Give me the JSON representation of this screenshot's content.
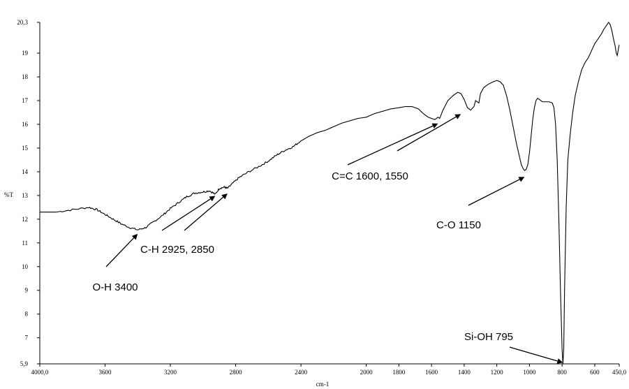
{
  "chart_data": {
    "type": "line",
    "xlabel": "cm-1",
    "ylabel": "%T",
    "xlim": [
      4000,
      450
    ],
    "ylim": [
      5.9,
      20.3
    ],
    "x_reversed": true,
    "grid": false,
    "x_ticks": [
      {
        "value": 4000,
        "label": "4000,0"
      },
      {
        "value": 3600,
        "label": "3600"
      },
      {
        "value": 3200,
        "label": "3200"
      },
      {
        "value": 2800,
        "label": "2800"
      },
      {
        "value": 2400,
        "label": "2400"
      },
      {
        "value": 2000,
        "label": "2000"
      },
      {
        "value": 1800,
        "label": "1800"
      },
      {
        "value": 1600,
        "label": "1600"
      },
      {
        "value": 1400,
        "label": "1400"
      },
      {
        "value": 1200,
        "label": "1200"
      },
      {
        "value": 1000,
        "label": "1000"
      },
      {
        "value": 800,
        "label": "800"
      },
      {
        "value": 600,
        "label": "600"
      },
      {
        "value": 450,
        "label": "450,0"
      }
    ],
    "y_ticks": [
      {
        "value": 5.9,
        "label": "5,9"
      },
      {
        "value": 7,
        "label": "7"
      },
      {
        "value": 8,
        "label": "8"
      },
      {
        "value": 9,
        "label": "9"
      },
      {
        "value": 10,
        "label": "10"
      },
      {
        "value": 11,
        "label": "11"
      },
      {
        "value": 12,
        "label": "12"
      },
      {
        "value": 13,
        "label": "13"
      },
      {
        "value": 14,
        "label": "14"
      },
      {
        "value": 15,
        "label": "15"
      },
      {
        "value": 16,
        "label": "16"
      },
      {
        "value": 17,
        "label": "17"
      },
      {
        "value": 18,
        "label": "18"
      },
      {
        "value": 19,
        "label": "19"
      },
      {
        "value": 20.3,
        "label": "20,3"
      }
    ],
    "series": [
      {
        "points": [
          [
            4000,
            12.3
          ],
          [
            3900,
            12.3
          ],
          [
            3800,
            12.4
          ],
          [
            3700,
            12.5
          ],
          [
            3650,
            12.4
          ],
          [
            3600,
            12.2
          ],
          [
            3550,
            12.0
          ],
          [
            3500,
            11.8
          ],
          [
            3450,
            11.65
          ],
          [
            3400,
            11.55
          ],
          [
            3350,
            11.65
          ],
          [
            3300,
            11.9
          ],
          [
            3250,
            12.15
          ],
          [
            3200,
            12.45
          ],
          [
            3150,
            12.7
          ],
          [
            3100,
            12.95
          ],
          [
            3050,
            13.1
          ],
          [
            3000,
            13.15
          ],
          [
            2960,
            13.2
          ],
          [
            2925,
            13.05
          ],
          [
            2900,
            13.3
          ],
          [
            2870,
            13.35
          ],
          [
            2850,
            13.3
          ],
          [
            2820,
            13.5
          ],
          [
            2780,
            13.75
          ],
          [
            2720,
            14.0
          ],
          [
            2650,
            14.25
          ],
          [
            2600,
            14.45
          ],
          [
            2550,
            14.7
          ],
          [
            2500,
            14.9
          ],
          [
            2450,
            15.05
          ],
          [
            2400,
            15.3
          ],
          [
            2350,
            15.5
          ],
          [
            2300,
            15.65
          ],
          [
            2250,
            15.75
          ],
          [
            2200,
            15.9
          ],
          [
            2150,
            16.05
          ],
          [
            2100,
            16.15
          ],
          [
            2050,
            16.25
          ],
          [
            2000,
            16.3
          ],
          [
            1950,
            16.45
          ],
          [
            1900,
            16.55
          ],
          [
            1850,
            16.65
          ],
          [
            1800,
            16.7
          ],
          [
            1760,
            16.75
          ],
          [
            1720,
            16.75
          ],
          [
            1700,
            16.7
          ],
          [
            1680,
            16.65
          ],
          [
            1650,
            16.45
          ],
          [
            1620,
            16.3
          ],
          [
            1600,
            16.25
          ],
          [
            1580,
            16.2
          ],
          [
            1560,
            16.3
          ],
          [
            1550,
            16.25
          ],
          [
            1530,
            16.6
          ],
          [
            1500,
            17.0
          ],
          [
            1470,
            17.2
          ],
          [
            1440,
            17.35
          ],
          [
            1420,
            17.3
          ],
          [
            1400,
            17.05
          ],
          [
            1380,
            16.7
          ],
          [
            1360,
            16.6
          ],
          [
            1340,
            16.75
          ],
          [
            1330,
            17.0
          ],
          [
            1310,
            16.9
          ],
          [
            1300,
            17.3
          ],
          [
            1280,
            17.55
          ],
          [
            1250,
            17.7
          ],
          [
            1220,
            17.8
          ],
          [
            1200,
            17.85
          ],
          [
            1180,
            17.8
          ],
          [
            1160,
            17.65
          ],
          [
            1140,
            17.2
          ],
          [
            1120,
            16.6
          ],
          [
            1100,
            15.9
          ],
          [
            1080,
            15.2
          ],
          [
            1060,
            14.6
          ],
          [
            1050,
            14.3
          ],
          [
            1040,
            14.15
          ],
          [
            1030,
            14.05
          ],
          [
            1020,
            14.1
          ],
          [
            1010,
            14.3
          ],
          [
            1000,
            14.8
          ],
          [
            990,
            15.5
          ],
          [
            980,
            16.2
          ],
          [
            970,
            16.7
          ],
          [
            960,
            17.0
          ],
          [
            950,
            17.1
          ],
          [
            940,
            17.05
          ],
          [
            920,
            16.95
          ],
          [
            900,
            16.95
          ],
          [
            880,
            16.95
          ],
          [
            860,
            16.9
          ],
          [
            850,
            16.7
          ],
          [
            840,
            16.0
          ],
          [
            830,
            14.5
          ],
          [
            820,
            12.0
          ],
          [
            810,
            9.0
          ],
          [
            800,
            6.5
          ],
          [
            795,
            5.9
          ],
          [
            790,
            6.5
          ],
          [
            785,
            9.0
          ],
          [
            775,
            12.5
          ],
          [
            765,
            14.5
          ],
          [
            750,
            15.6
          ],
          [
            735,
            16.5
          ],
          [
            720,
            17.2
          ],
          [
            700,
            17.8
          ],
          [
            680,
            18.3
          ],
          [
            660,
            18.6
          ],
          [
            640,
            18.8
          ],
          [
            620,
            19.1
          ],
          [
            600,
            19.4
          ],
          [
            580,
            19.6
          ],
          [
            560,
            19.8
          ],
          [
            545,
            20.0
          ],
          [
            530,
            20.15
          ],
          [
            515,
            20.3
          ],
          [
            505,
            20.2
          ],
          [
            495,
            19.95
          ],
          [
            485,
            19.6
          ],
          [
            475,
            19.3
          ],
          [
            468,
            19.0
          ],
          [
            462,
            18.9
          ],
          [
            457,
            19.1
          ],
          [
            452,
            19.3
          ],
          [
            450,
            19.35
          ]
        ]
      }
    ],
    "annotations": [
      {
        "label": "O-H 3400",
        "target": [
          3400,
          11.5
        ]
      },
      {
        "label": "C-H 2925, 2850",
        "target": [
          2925,
          13.1
        ]
      },
      {
        "label": "C=C 1600, 1550",
        "target": [
          1550,
          16.1
        ]
      },
      {
        "label": "C-O 1150",
        "target": [
          1030,
          13.9
        ]
      },
      {
        "label": "Si-OH 795",
        "target": [
          795,
          5.95
        ]
      }
    ]
  }
}
